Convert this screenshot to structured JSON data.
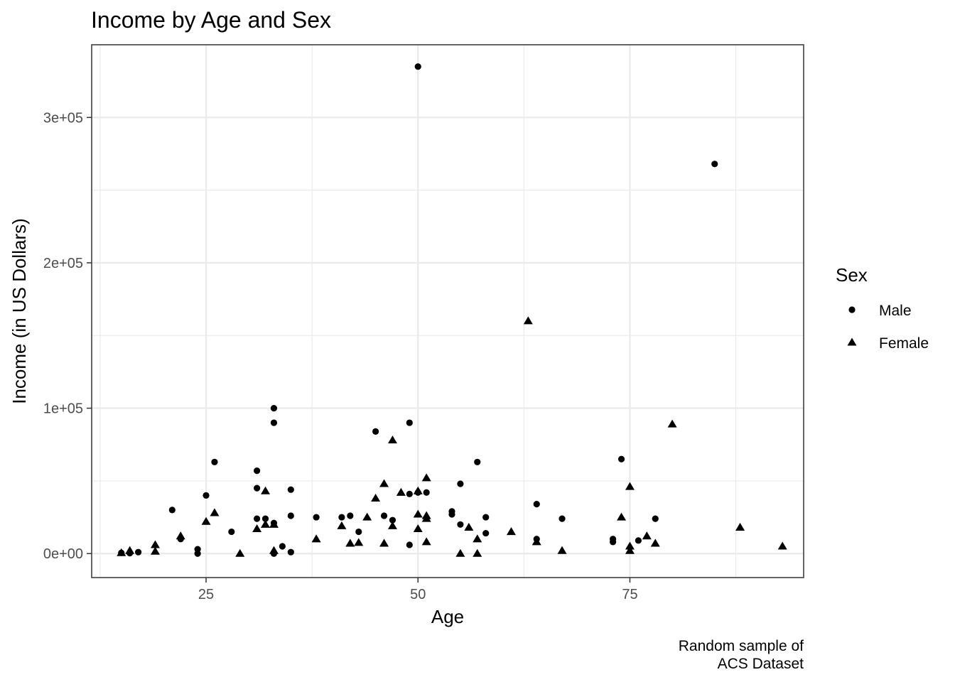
{
  "chart_data": {
    "type": "scatter",
    "title": "Income by Age and Sex",
    "xlabel": "Age",
    "ylabel": "Income (in US Dollars)",
    "caption_lines": [
      "Random sample of",
      "ACS Dataset"
    ],
    "xlim": [
      11.5,
      95.5
    ],
    "ylim": [
      -16500,
      350000
    ],
    "x_ticks": [
      25,
      50,
      75
    ],
    "x_tick_labels": [
      "25",
      "50",
      "75"
    ],
    "x_minor_ticks": [
      12.5,
      37.5,
      62.5,
      87.5
    ],
    "y_ticks": [
      0,
      100000,
      200000,
      300000
    ],
    "y_tick_labels": [
      "0e+00",
      "1e+05",
      "2e+05",
      "3e+05"
    ],
    "y_minor_ticks": [
      50000,
      150000,
      250000
    ],
    "grid": true,
    "theme": "bw",
    "legend": {
      "title": "Sex",
      "position": "right",
      "entries": [
        {
          "label": "Male",
          "shape": "circle"
        },
        {
          "label": "Female",
          "shape": "triangle"
        }
      ]
    },
    "point_color": "#000000",
    "series": [
      {
        "name": "Male",
        "shape": "circle",
        "points": [
          [
            15,
            500
          ],
          [
            16,
            300
          ],
          [
            17,
            1000
          ],
          [
            21,
            30000
          ],
          [
            22,
            10000
          ],
          [
            24,
            3000
          ],
          [
            24,
            0
          ],
          [
            25,
            40000
          ],
          [
            26,
            63000
          ],
          [
            28,
            15000
          ],
          [
            31,
            57000
          ],
          [
            31,
            45000
          ],
          [
            31,
            24000
          ],
          [
            32,
            24000
          ],
          [
            33,
            100000
          ],
          [
            33,
            90000
          ],
          [
            33,
            21000
          ],
          [
            33,
            0
          ],
          [
            34,
            5000
          ],
          [
            35,
            44000
          ],
          [
            35,
            26000
          ],
          [
            35,
            1000
          ],
          [
            38,
            25000
          ],
          [
            41,
            25000
          ],
          [
            42,
            26000
          ],
          [
            43,
            15000
          ],
          [
            45,
            84000
          ],
          [
            46,
            26000
          ],
          [
            47,
            23000
          ],
          [
            49,
            90000
          ],
          [
            49,
            41000
          ],
          [
            49,
            6000
          ],
          [
            50,
            335000
          ],
          [
            50,
            42000
          ],
          [
            51,
            42000
          ],
          [
            54,
            29000
          ],
          [
            54,
            27000
          ],
          [
            55,
            48000
          ],
          [
            55,
            20000
          ],
          [
            57,
            63000
          ],
          [
            58,
            25000
          ],
          [
            58,
            14000
          ],
          [
            64,
            34000
          ],
          [
            64,
            10000
          ],
          [
            67,
            24000
          ],
          [
            73,
            10000
          ],
          [
            73,
            8000
          ],
          [
            74,
            65000
          ],
          [
            76,
            9000
          ],
          [
            78,
            24000
          ],
          [
            85,
            268000
          ]
        ]
      },
      {
        "name": "Female",
        "shape": "triangle",
        "points": [
          [
            15,
            500
          ],
          [
            16,
            2000
          ],
          [
            19,
            6000
          ],
          [
            19,
            1500
          ],
          [
            22,
            12000
          ],
          [
            25,
            22000
          ],
          [
            26,
            28000
          ],
          [
            29,
            0
          ],
          [
            31,
            17000
          ],
          [
            32,
            43000
          ],
          [
            32,
            20000
          ],
          [
            33,
            20000
          ],
          [
            33,
            2000
          ],
          [
            38,
            10000
          ],
          [
            41,
            19000
          ],
          [
            42,
            7000
          ],
          [
            43,
            7500
          ],
          [
            44,
            25000
          ],
          [
            45,
            38000
          ],
          [
            46,
            48000
          ],
          [
            46,
            7000
          ],
          [
            47,
            78000
          ],
          [
            47,
            19000
          ],
          [
            48,
            42000
          ],
          [
            50,
            43000
          ],
          [
            50,
            27000
          ],
          [
            50,
            17000
          ],
          [
            51,
            52000
          ],
          [
            51,
            26000
          ],
          [
            51,
            24000
          ],
          [
            51,
            8000
          ],
          [
            55,
            0
          ],
          [
            56,
            18000
          ],
          [
            57,
            10000
          ],
          [
            57,
            0
          ],
          [
            61,
            15000
          ],
          [
            63,
            160000
          ],
          [
            64,
            8000
          ],
          [
            67,
            2000
          ],
          [
            74,
            25000
          ],
          [
            75,
            46000
          ],
          [
            75,
            5000
          ],
          [
            75,
            2000
          ],
          [
            77,
            12000
          ],
          [
            78,
            7000
          ],
          [
            80,
            89000
          ],
          [
            88,
            18000
          ],
          [
            93,
            5000
          ]
        ]
      }
    ]
  }
}
